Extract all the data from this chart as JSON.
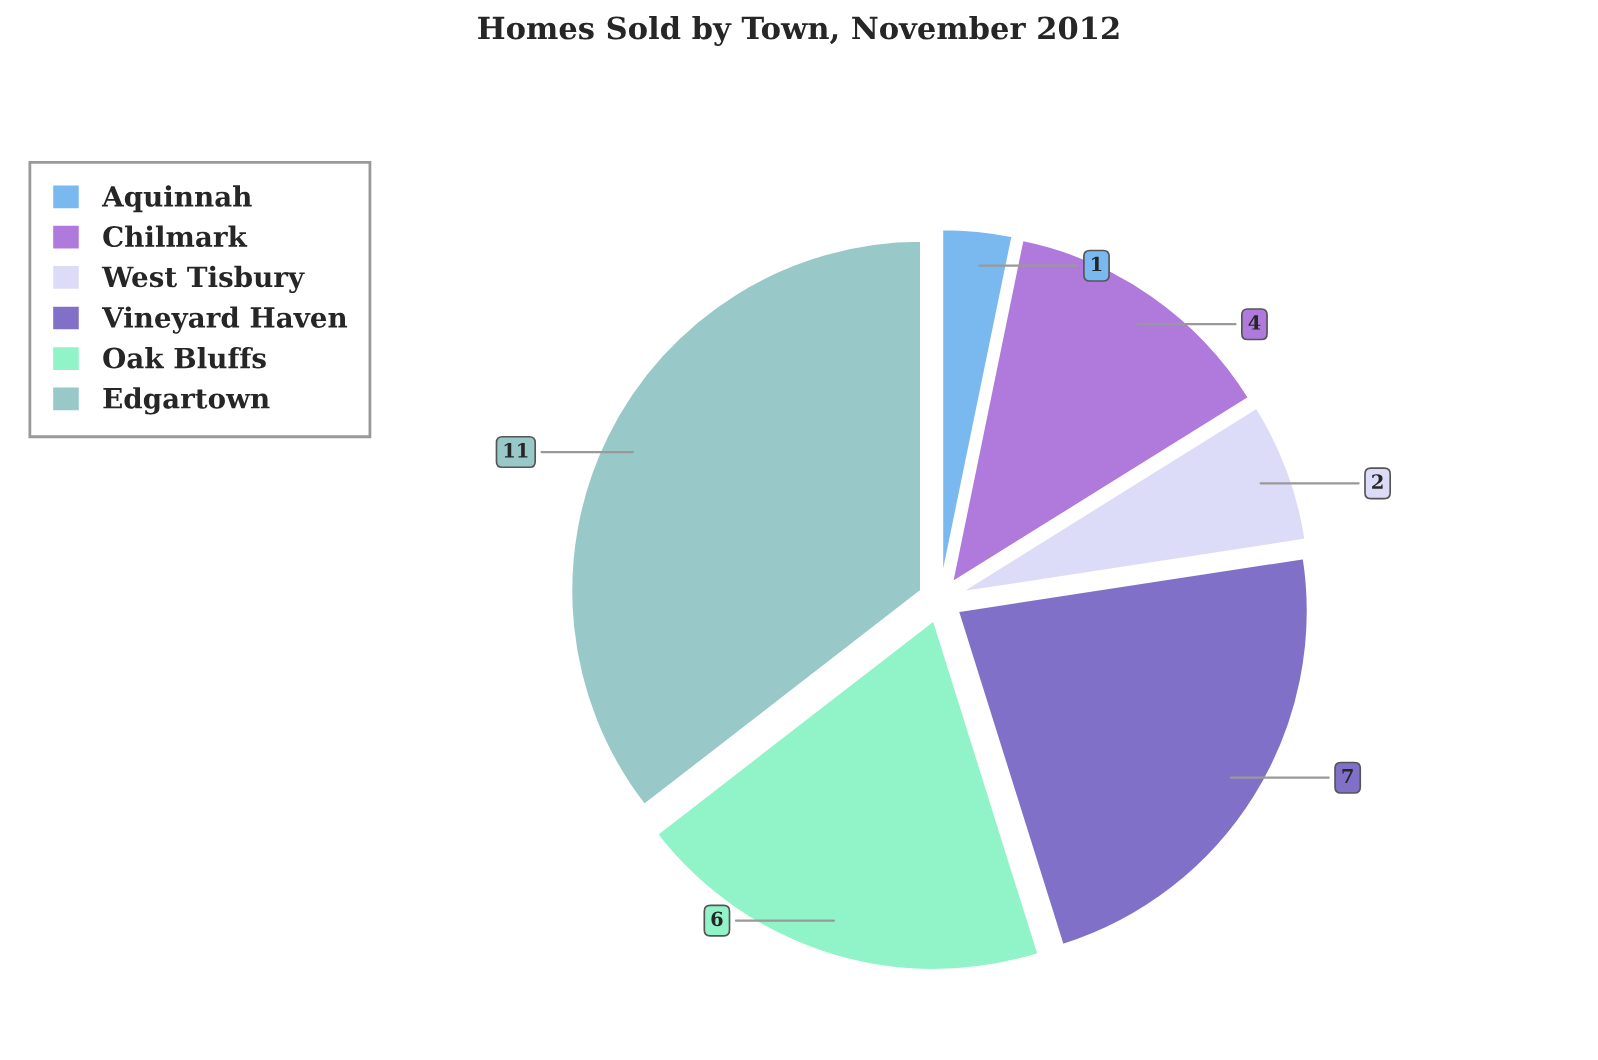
{
  "chart_data": {
    "type": "pie",
    "title": "Homes Sold by Town, November 2012",
    "categories": [
      "Aquinnah",
      "Chilmark",
      "West Tisbury",
      "Vineyard Haven",
      "Oak Bluffs",
      "Edgartown"
    ],
    "values": [
      1,
      4,
      2,
      7,
      6,
      11
    ],
    "colors": [
      "#7ab8f0",
      "#b07adc",
      "#dcdcf8",
      "#8070c8",
      "#90f4c8",
      "#98c8c8"
    ],
    "data_labels": true,
    "legend": "top left"
  }
}
